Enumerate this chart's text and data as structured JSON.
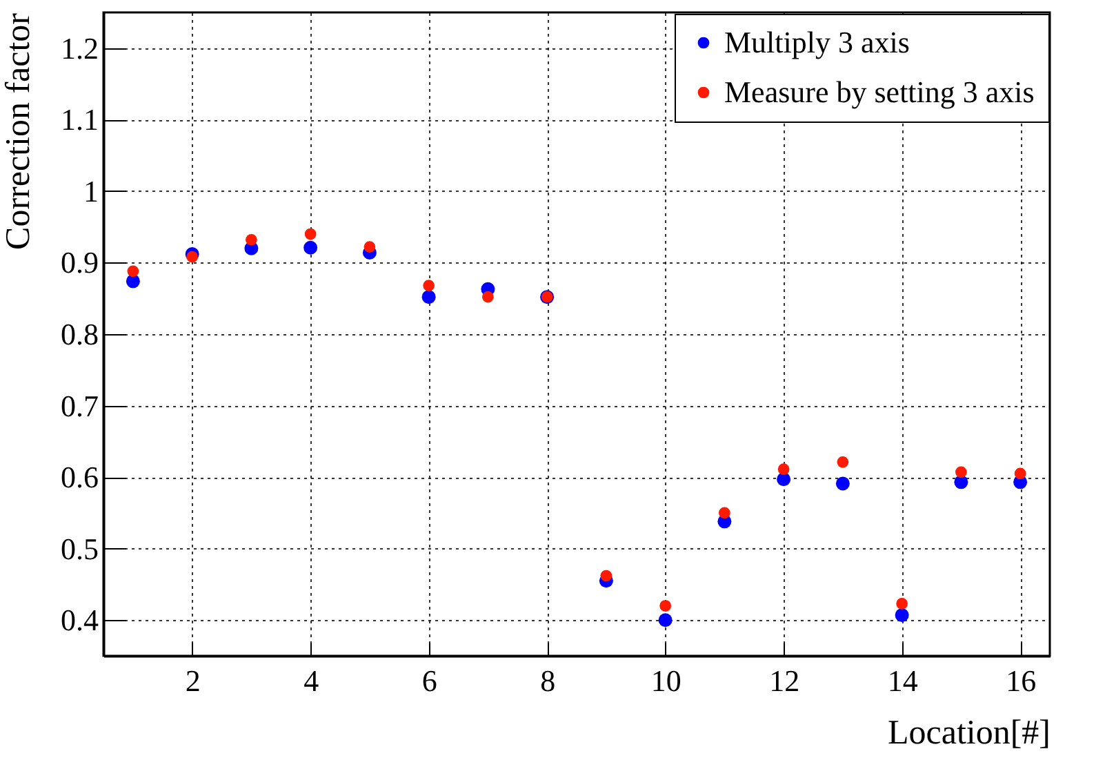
{
  "chart_data": {
    "type": "scatter",
    "xlabel": "Location[#]",
    "ylabel": "Correction factor",
    "x": [
      1,
      2,
      3,
      4,
      5,
      6,
      7,
      8,
      9,
      10,
      11,
      12,
      13,
      14,
      15,
      16
    ],
    "series": [
      {
        "name": "Multiply 3 axis",
        "color": "#0000ff",
        "values": [
          0.874,
          0.912,
          0.92,
          0.921,
          0.914,
          0.852,
          0.863,
          0.852,
          0.455,
          0.4,
          0.538,
          0.597,
          0.591,
          0.407,
          0.593,
          0.593
        ]
      },
      {
        "name": "Measure by setting 3 axis",
        "color": "#ff1a00",
        "values": [
          0.888,
          0.908,
          0.932,
          0.94,
          0.922,
          0.868,
          0.852,
          0.852,
          0.462,
          0.42,
          0.55,
          0.611,
          0.621,
          0.423,
          0.607,
          0.605
        ]
      }
    ],
    "xlim": [
      0.5,
      16.5
    ],
    "xticks": [
      2,
      4,
      6,
      8,
      10,
      12,
      14,
      16
    ],
    "ylim": [
      0.35,
      1.25
    ],
    "yticks": [
      0.4,
      0.5,
      0.6,
      0.7,
      0.8,
      0.9,
      1,
      1.1,
      1.2
    ],
    "grid": true,
    "legend": "top right",
    "marker": "circle"
  }
}
